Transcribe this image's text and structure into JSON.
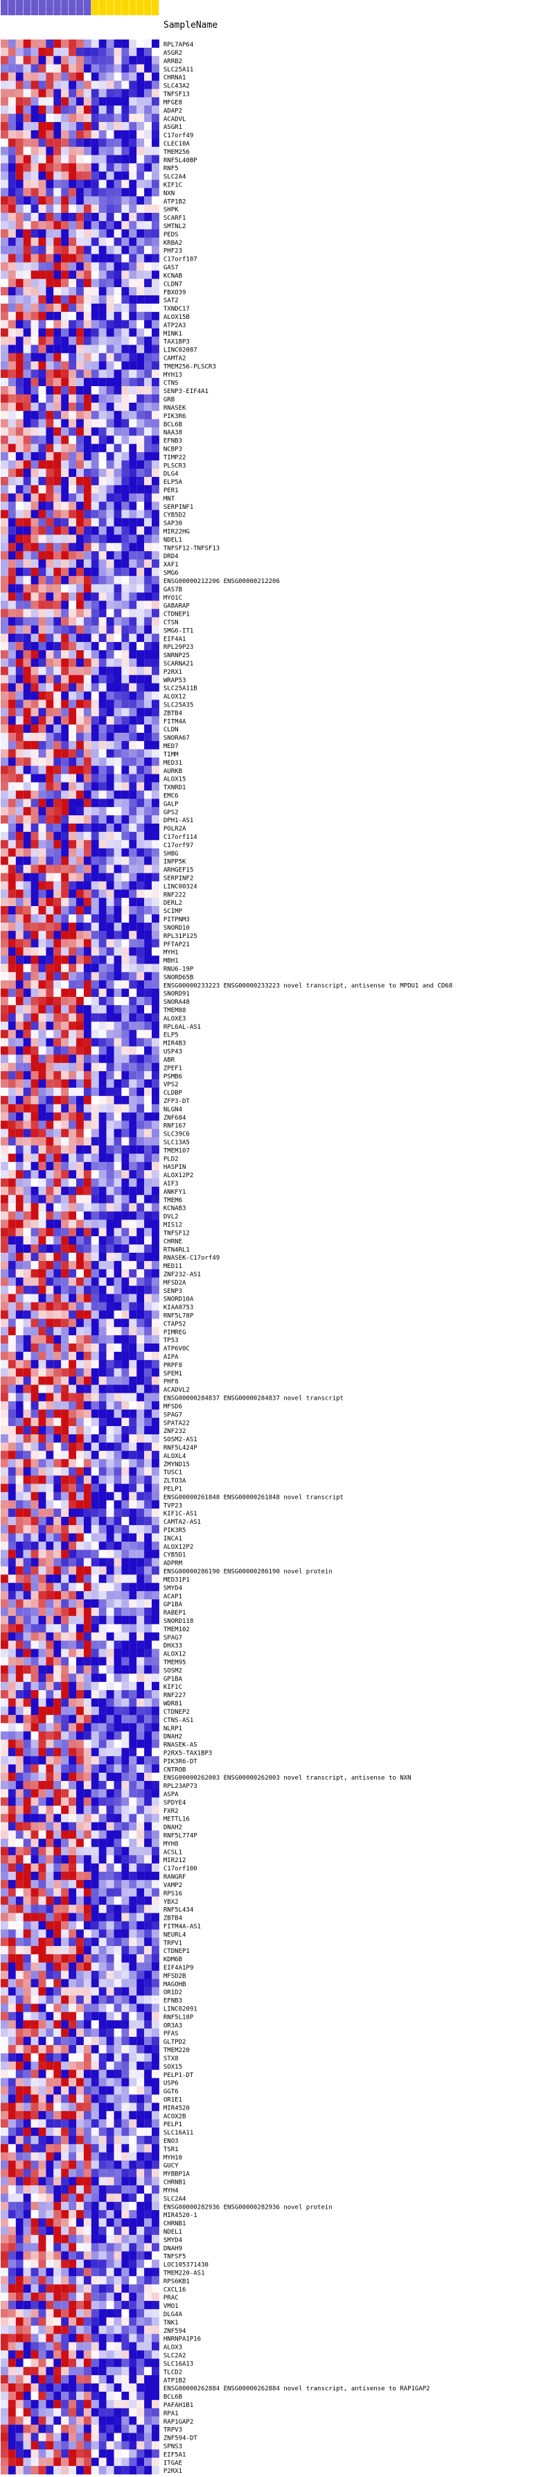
{
  "chart_data": {
    "type": "heatmap",
    "title": "",
    "column_header": "SampleName",
    "columns": [
      "",
      "",
      "",
      "",
      "",
      "",
      "",
      "",
      "",
      "",
      "",
      "",
      "",
      "",
      "",
      "",
      "",
      "",
      "",
      "",
      ""
    ],
    "column_colors": [
      "#6a5acd",
      "#6a5acd",
      "#6a5acd",
      "#6a5acd",
      "#6a5acd",
      "#6a5acd",
      "#6a5acd",
      "#6a5acd",
      "#6a5acd",
      "#6a5acd",
      "#6a5acd",
      "#6a5acd",
      "#ffd700",
      "#ffd700",
      "#ffd700",
      "#ffd700",
      "#ffd700",
      "#ffd700",
      "#ffd700",
      "#ffd700",
      "#ffd700"
    ],
    "color_scale": {
      "low": "#0000cc",
      "mid": "#ffffff",
      "high": "#cc0000"
    },
    "rows": [
      "RPL7AP64",
      "ASGR2",
      "ARRB2",
      "SLC25A11",
      "CHRNA1",
      "SLC43A2",
      "TNFSF13",
      "MFGE8",
      "ADAP2",
      "ACADVL",
      "ASGR1",
      "C17orf49",
      "CLEC10A",
      "TMEM256",
      "RNF5L40BP",
      "RNF5",
      "SLC2A4",
      "KIF1C",
      "NXN",
      "ATP1B2",
      "SHPK",
      "SCARF1",
      "SMTNL2",
      "PEDS",
      "KRBA2",
      "PHF23",
      "C17orf107",
      "GAS7",
      "KCNAB",
      "CLDN7",
      "FBXO39",
      "SAT2",
      "TXNDC17",
      "ALOX15B",
      "ATP2A3",
      "MINK1",
      "TAX1BP3",
      "LINC02087",
      "CAMTA2",
      "TMEM256-PLSCR3",
      "MYH13",
      "CTNS",
      "SENP3-EIF4A1",
      "GRB",
      "RNASEK",
      "PIK3R6",
      "BCL6B",
      "NAA38",
      "EFNB3",
      "NCBP3",
      "TIMP22",
      "PLSCR3",
      "DLG4",
      "ELP5A",
      "PER1",
      "MNT",
      "SERPINF1",
      "CYB5D2",
      "SAP30",
      "MIR22HG",
      "NDEL1",
      "TNFSF12-TNFSF13",
      "DRD4",
      "XAF1",
      "SMG6",
      "ENSG00000212206 ENSG00000212206",
      "GAS7B",
      "MYO1C",
      "GABARAP",
      "CTDNEP1",
      "CTSN",
      "SMG6-IT1",
      "EIF4A1",
      "RPL29P23",
      "SNRNP25",
      "SCARNA21",
      "P2RX1",
      "WRAP53",
      "SLC25A11B",
      "ALOX12",
      "SLC25A35",
      "ZBTB4",
      "FITM4A",
      "CLDN",
      "SNORA67",
      "MED7",
      "TIMM",
      "MED31",
      "AURKB",
      "ALOX15",
      "TXNRD1",
      "EMC6",
      "GALP",
      "GPS2",
      "DPH1-AS1",
      "POLR2A",
      "C17orf114",
      "C17orf97",
      "SHBG",
      "INPP5K",
      "ARHGEF15",
      "SERPINF2",
      "LINC00324",
      "RNF222",
      "DERL2",
      "SCIMP",
      "PITPNM3",
      "SNORD10",
      "RPL31P125",
      "PFTAP21",
      "MYH1",
      "MBH1",
      "RNU6-19P",
      "SNORD65B",
      "ENSG00000233223 ENSG00000233223 novel transcript, antisense to MPDU1 and CD68",
      "SNORD91",
      "SNORA48",
      "TMEM88",
      "ALOXE3",
      "RPL6AL-AS1",
      "ELP5",
      "MIR4B3",
      "USP43",
      "ABR",
      "ZPEF1",
      "PSMB6",
      "VPS2",
      "CLDBP",
      "ZFP3-DT",
      "NLGN4",
      "ZNF684",
      "RNF167",
      "SLC39C6",
      "SLC13A5",
      "TMEM107",
      "PLD2",
      "HASPIN",
      "ALOX12P2",
      "AIF3",
      "ANKFY1",
      "TMEM6",
      "KCNAB3",
      "DVL2",
      "MIS12",
      "TNFSF12",
      "CHRNE",
      "RTN4RL1",
      "RNASEK-C17orf49",
      "MED11",
      "ZNF232-AS1",
      "MFSD2A",
      "SENP3",
      "SNORD10A",
      "KIAA0753",
      "RNF5L78P",
      "CTAP52",
      "PIMREG",
      "TP53",
      "ATP6V0C",
      "AIPA",
      "PRPF8",
      "SPEM1",
      "PHF8",
      "ACADVL2",
      "ENSG00000284837 ENSG00000284837 novel transcript",
      "MFSD6",
      "SPAG7",
      "SPATA22",
      "ZNF232",
      "SOSM2-AS1",
      "RNF5L424P",
      "ALOXL4",
      "ZMYND15",
      "TUSC1",
      "ZLTO3A",
      "PELP1",
      "ENSG00000261848 ENSG00000261848 novel transcript",
      "TVP23",
      "KIF1C-AS1",
      "CAMTA2-AS1",
      "PIK3R5",
      "INCA1",
      "ALOX12P2",
      "CYB5D1",
      "ADPRM",
      "ENSG00000286190 ENSG00000286190 novel protein",
      "MED31P1",
      "SMYD4",
      "ACAP1",
      "GP1BA",
      "RABEP1",
      "SNORD118",
      "TMEM102",
      "SPAG7",
      "DHX33",
      "ALOX12",
      "TMEM95",
      "SOSM2",
      "GP1BA",
      "KIF1C",
      "RNF227",
      "WDR81",
      "CTDNEP2",
      "CTNS-AS1",
      "NLRP1",
      "DNAH2",
      "RNASEK-AS",
      "P2RX5-TAX1BP3",
      "PIK3R6-DT",
      "CNTROB",
      "ENSG00000262003 ENSG00000262003 novel transcript, antisense to NXN",
      "RPL23AP73",
      "ASPA",
      "SPDYE4",
      "FXR2",
      "METTL16",
      "DNAH2",
      "RNF5L774P",
      "MYH8",
      "ACSL1",
      "MIR212",
      "C17orf100",
      "RANGRF",
      "VAMP2",
      "RPS16",
      "YBX2",
      "RNF5L434",
      "ZBTB4",
      "FITM4A-AS1",
      "NEURL4",
      "TRPV1",
      "CTDNEP1",
      "KDM6B",
      "EIF4A1P9",
      "MFSD2B",
      "MAGOHB",
      "OR1D2",
      "EFNB3",
      "LINC02091",
      "RNF5L18P",
      "OR3A3",
      "PFAS",
      "GLTPD2",
      "TMEM220",
      "STX8",
      "SOX15",
      "PELP1-DT",
      "USP6",
      "GGT6",
      "OR1E1",
      "MIR4520",
      "ACOX2B",
      "PELP1",
      "SLC16A11",
      "ENO3",
      "TSR1",
      "MYH10",
      "GUCY",
      "MYBBP1A",
      "CHRNB1",
      "MYH4",
      "SLC2A4",
      "ENSG00000282936 ENSG00000282936 novel protein",
      "MIR4520-1",
      "CHRNB1",
      "NDEL1",
      "SMYD4",
      "DNAH9",
      "TNFSF5",
      "LOC105371430",
      "TMEM220-AS1",
      "RPS6KB1",
      "CXCL16",
      "PRAC",
      "VMO1",
      "DLG4A",
      "TNK1",
      "ZNF594",
      "HNRNPA1P16",
      "ALOX3",
      "SLC2A2",
      "SLC16A13",
      "TLCD2",
      "ATP1B2",
      "ENSG00000262884 ENSG00000262884 novel transcript, antisense to RAP1GAP2",
      "BCL6B",
      "PAFAH1B1",
      "RPA1",
      "RAP1GAP2",
      "TRPV3",
      "ZNF594-DT",
      "SPNS3",
      "EIF5A1",
      "ITGAE",
      "P2RX1"
    ]
  }
}
